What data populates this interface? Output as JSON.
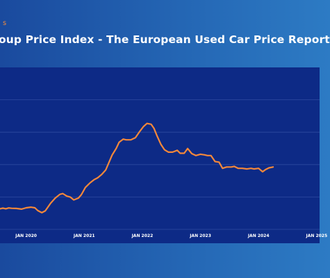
{
  "header": {
    "top_label": "s",
    "title": "oup Price Index - The European Used Car Price Report"
  },
  "colors": {
    "background_start": "#1a4a9e",
    "background_end": "#2d7bc4",
    "plot_background": "#0d2a86",
    "line": "#f5883a",
    "gridline": "#2e4ba0"
  },
  "chart_data": {
    "type": "line",
    "title": "oup Price Index - The European Used Car Price Report",
    "xlabel": "",
    "ylabel": "",
    "grid": true,
    "legend": "none",
    "x_ticks": [
      "JAN 2020",
      "JAN 2021",
      "JAN 2022",
      "JAN 2023",
      "JAN 2024",
      "JAN 2025"
    ],
    "x_tick_positions": [
      2020,
      2021,
      2022,
      2023,
      2024,
      2025
    ],
    "xlim": [
      2019.55,
      2025.05
    ],
    "ylim": [
      0,
      100
    ],
    "gridlines": [
      0,
      20,
      40,
      60,
      80
    ],
    "series": [
      {
        "values": [
          [
            2019.55,
            12.7
          ],
          [
            2019.6,
            13.1
          ],
          [
            2019.65,
            12.7
          ],
          [
            2019.7,
            13.2
          ],
          [
            2019.75,
            13.0
          ],
          [
            2019.83,
            12.9
          ],
          [
            2019.92,
            12.5
          ],
          [
            2020.0,
            13.3
          ],
          [
            2020.08,
            13.7
          ],
          [
            2020.15,
            13.3
          ],
          [
            2020.2,
            11.6
          ],
          [
            2020.27,
            10.3
          ],
          [
            2020.33,
            11.4
          ],
          [
            2020.42,
            16.1
          ],
          [
            2020.5,
            19.3
          ],
          [
            2020.58,
            21.6
          ],
          [
            2020.63,
            22.1
          ],
          [
            2020.7,
            20.5
          ],
          [
            2020.76,
            19.9
          ],
          [
            2020.82,
            18.2
          ],
          [
            2020.9,
            19.3
          ],
          [
            2020.95,
            21.4
          ],
          [
            2021.02,
            25.9
          ],
          [
            2021.1,
            28.7
          ],
          [
            2021.17,
            30.7
          ],
          [
            2021.23,
            31.8
          ],
          [
            2021.3,
            33.9
          ],
          [
            2021.37,
            36.7
          ],
          [
            2021.42,
            40.9
          ],
          [
            2021.48,
            45.9
          ],
          [
            2021.55,
            50.0
          ],
          [
            2021.6,
            53.8
          ],
          [
            2021.67,
            55.7
          ],
          [
            2021.72,
            55.3
          ],
          [
            2021.8,
            55.3
          ],
          [
            2021.88,
            56.6
          ],
          [
            2021.95,
            60.2
          ],
          [
            2022.02,
            63.5
          ],
          [
            2022.08,
            65.4
          ],
          [
            2022.15,
            64.9
          ],
          [
            2022.2,
            62.4
          ],
          [
            2022.25,
            58.0
          ],
          [
            2022.32,
            52.4
          ],
          [
            2022.38,
            49.2
          ],
          [
            2022.45,
            47.7
          ],
          [
            2022.52,
            47.7
          ],
          [
            2022.6,
            48.8
          ],
          [
            2022.65,
            47.0
          ],
          [
            2022.72,
            47.0
          ],
          [
            2022.78,
            49.9
          ],
          [
            2022.85,
            46.8
          ],
          [
            2022.92,
            45.6
          ],
          [
            2023.0,
            46.4
          ],
          [
            2023.07,
            46.0
          ],
          [
            2023.12,
            45.6
          ],
          [
            2023.18,
            45.6
          ],
          [
            2023.25,
            41.9
          ],
          [
            2023.32,
            41.5
          ],
          [
            2023.38,
            37.7
          ],
          [
            2023.45,
            38.5
          ],
          [
            2023.53,
            38.5
          ],
          [
            2023.58,
            38.9
          ],
          [
            2023.65,
            37.7
          ],
          [
            2023.72,
            37.7
          ],
          [
            2023.8,
            37.3
          ],
          [
            2023.87,
            37.7
          ],
          [
            2023.92,
            37.3
          ],
          [
            2024.0,
            37.7
          ],
          [
            2024.07,
            35.6
          ],
          [
            2024.12,
            36.9
          ],
          [
            2024.18,
            38.0
          ],
          [
            2024.25,
            38.5
          ]
        ]
      }
    ]
  }
}
